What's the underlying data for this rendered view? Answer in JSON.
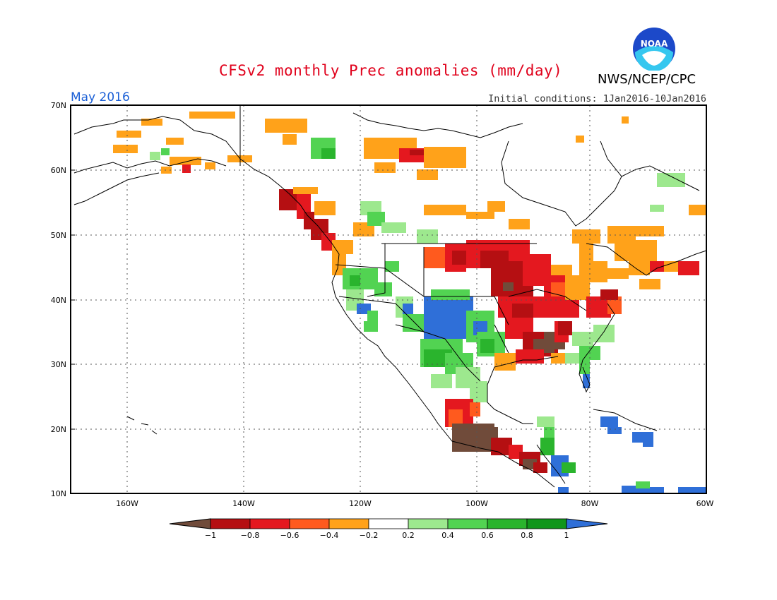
{
  "header": {
    "title": "CFSv2 monthly Prec anomalies (mm/day)",
    "agency": "NWS/NCEP/CPC",
    "month": "May 2016",
    "initial_conditions": "Initial conditions: 1Jan2016-10Jan2016"
  },
  "logo": {
    "name": "noaa-logo",
    "text": "NOAA"
  },
  "axes": {
    "lat_labels": [
      "70N",
      "60N",
      "50N",
      "40N",
      "30N",
      "20N",
      "10N"
    ],
    "lon_labels": [
      "160W",
      "140W",
      "120W",
      "100W",
      "80W",
      "60W"
    ]
  },
  "colorbar": {
    "labels": [
      "−1",
      "−0.8",
      "−0.6",
      "−0.4",
      "−0.2",
      "0.2",
      "0.4",
      "0.6",
      "0.8",
      "1"
    ],
    "colors": [
      "#704b3a",
      "#b50f12",
      "#e4181f",
      "#ff5a1e",
      "#ffa21a",
      "#ffffff",
      "#9de88e",
      "#52d352",
      "#2ab42d",
      "#10961b",
      "#2f6fd8"
    ]
  },
  "palette": {
    "brown": "#704b3a",
    "darkred": "#b50f12",
    "red": "#e4181f",
    "orange_red": "#ff5a1e",
    "orange": "#ffa21a",
    "lightgreen": "#9de88e",
    "green": "#52d352",
    "midgreen": "#2ab42d",
    "darkgreen": "#10961b",
    "blue": "#2f6fd8"
  }
}
